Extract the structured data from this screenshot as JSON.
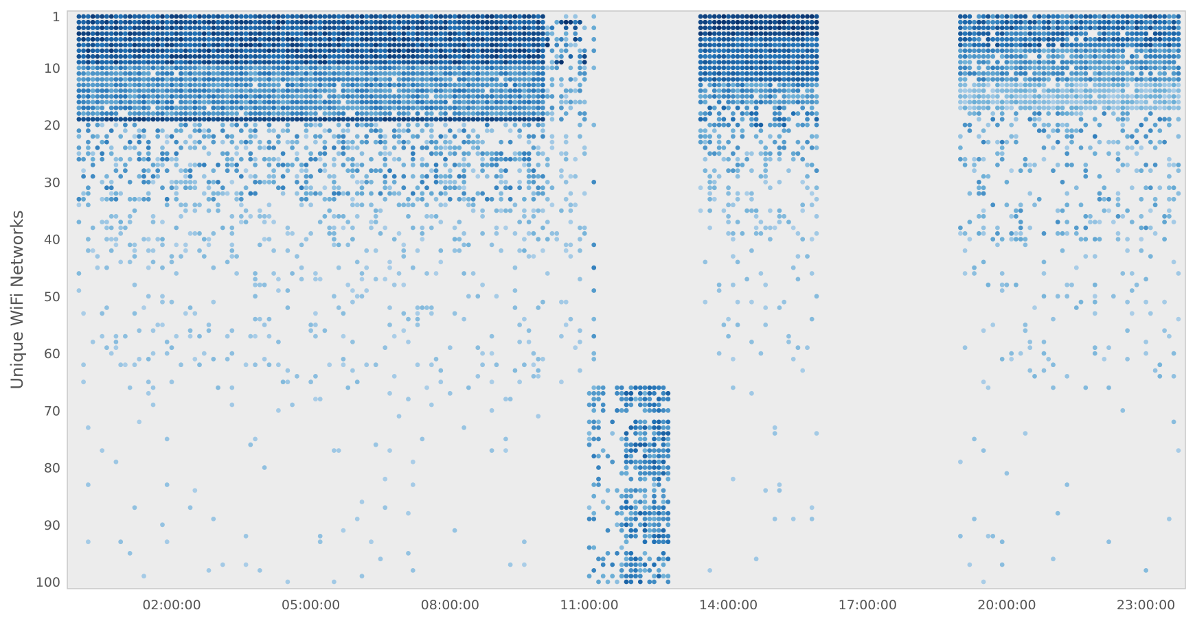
{
  "chart_data": {
    "type": "scatter",
    "ylabel": "Unique WiFi Networks",
    "xlabel": "",
    "x_unit": "hours of day",
    "xlim": [
      -0.25,
      23.85
    ],
    "ylim": [
      1,
      100
    ],
    "y_inverted": true,
    "grid": false,
    "legend": "none",
    "x_ticks": [
      {
        "value": 2,
        "label": "02:00:00"
      },
      {
        "value": 5,
        "label": "05:00:00"
      },
      {
        "value": 8,
        "label": "08:00:00"
      },
      {
        "value": 11,
        "label": "11:00:00"
      },
      {
        "value": 14,
        "label": "14:00:00"
      },
      {
        "value": 17,
        "label": "17:00:00"
      },
      {
        "value": 20,
        "label": "20:00:00"
      },
      {
        "value": 23,
        "label": "23:00:00"
      }
    ],
    "y_ticks": [
      {
        "value": 1,
        "label": "1"
      },
      {
        "value": 10,
        "label": "10"
      },
      {
        "value": 20,
        "label": "20"
      },
      {
        "value": 30,
        "label": "30"
      },
      {
        "value": 40,
        "label": "40"
      },
      {
        "value": 50,
        "label": "50"
      },
      {
        "value": 60,
        "label": "60"
      },
      {
        "value": 70,
        "label": "70"
      },
      {
        "value": 80,
        "label": "80"
      },
      {
        "value": 90,
        "label": "90"
      },
      {
        "value": 100,
        "label": "100"
      }
    ],
    "colors": {
      "plot_background": "#ececec",
      "frame": "#c8c8c8",
      "intensity_low": "#c6dbef",
      "intensity_mid": "#6baed6",
      "intensity_high": "#2171b5",
      "intensity_max": "#08306b"
    },
    "time_step_hours": 0.1,
    "series": [
      {
        "period": [
          0.0,
          10.0
        ],
        "blocks": [
          {
            "networks": [
              1,
              9
            ],
            "density": 1.0,
            "intensity": [
              0.65,
              0.95
            ]
          },
          {
            "networks": [
              10,
              17
            ],
            "density": 0.97,
            "intensity": [
              0.35,
              0.65
            ]
          },
          {
            "networks": [
              18,
              18
            ],
            "density": 0.8,
            "intensity": [
              0.35,
              0.6
            ]
          },
          {
            "networks": [
              19,
              19
            ],
            "density": 1.0,
            "intensity": [
              0.8,
              0.95
            ]
          },
          {
            "networks": [
              20,
              33
            ],
            "density": 0.42,
            "intensity": [
              0.1,
              0.6
            ]
          },
          {
            "networks": [
              34,
              42
            ],
            "density": 0.22,
            "intensity": [
              0.1,
              0.3
            ]
          },
          {
            "networks": [
              43,
              66
            ],
            "density": 0.09,
            "intensity": [
              0.1,
              0.25
            ]
          },
          {
            "networks": [
              67,
              100
            ],
            "density": 0.015,
            "intensity": [
              0.1,
              0.2
            ]
          }
        ]
      },
      {
        "period": [
          10.1,
          10.9
        ],
        "blocks": [
          {
            "networks": [
              1,
              9
            ],
            "density": 0.6,
            "intensity": [
              0.15,
              1.0
            ]
          },
          {
            "networks": [
              10,
              19
            ],
            "density": 0.5,
            "intensity": [
              0.1,
              0.5
            ]
          },
          {
            "networks": [
              20,
              42
            ],
            "density": 0.22,
            "intensity": [
              0.1,
              0.3
            ]
          },
          {
            "networks": [
              43,
              66
            ],
            "density": 0.05,
            "intensity": [
              0.1,
              0.2
            ]
          },
          {
            "networks": [
              67,
              100
            ],
            "density": 0.01,
            "intensity": [
              0.1,
              0.2
            ]
          }
        ]
      },
      {
        "period": [
          11.1,
          11.1
        ],
        "points": [
          1,
          3,
          5,
          7,
          10,
          20,
          30,
          41,
          45,
          49,
          54,
          57,
          60,
          61
        ]
      },
      {
        "period": [
          11.0,
          11.8
        ],
        "blocks": [
          {
            "networks": [
              66,
              70
            ],
            "density": 0.45,
            "intensity": [
              0.2,
              0.6
            ]
          },
          {
            "networks": [
              72,
              100
            ],
            "density": 0.3,
            "intensity": [
              0.2,
              0.6
            ]
          }
        ]
      },
      {
        "period": [
          11.8,
          12.7
        ],
        "blocks": [
          {
            "networks": [
              66,
              70
            ],
            "density": 0.85,
            "intensity": [
              0.3,
              0.75
            ]
          },
          {
            "networks": [
              72,
              82
            ],
            "density": 0.8,
            "intensity": [
              0.3,
              0.75
            ]
          },
          {
            "networks": [
              83,
              85
            ],
            "density": 0.45,
            "intensity": [
              0.2,
              0.55
            ]
          },
          {
            "networks": [
              86,
              93
            ],
            "density": 0.8,
            "intensity": [
              0.3,
              0.75
            ]
          },
          {
            "networks": [
              95,
              100
            ],
            "density": 0.6,
            "intensity": [
              0.3,
              0.75
            ]
          }
        ]
      },
      {
        "period": [
          13.4,
          15.9
        ],
        "blocks": [
          {
            "networks": [
              1,
              4
            ],
            "density": 1.0,
            "intensity": [
              0.8,
              1.0
            ]
          },
          {
            "networks": [
              5,
              12
            ],
            "density": 1.0,
            "intensity": [
              0.6,
              0.8
            ]
          },
          {
            "networks": [
              13,
              16
            ],
            "density": 0.9,
            "intensity": [
              0.3,
              0.65
            ]
          },
          {
            "networks": [
              17,
              20
            ],
            "density": 0.55,
            "intensity": [
              0.35,
              0.75
            ]
          },
          {
            "networks": [
              21,
              28
            ],
            "density": 0.35,
            "intensity": [
              0.15,
              0.5
            ]
          },
          {
            "networks": [
              29,
              40
            ],
            "density": 0.2,
            "intensity": [
              0.1,
              0.3
            ]
          },
          {
            "networks": [
              41,
              60
            ],
            "density": 0.06,
            "intensity": [
              0.1,
              0.25
            ]
          },
          {
            "networks": [
              61,
              100
            ],
            "density": 0.012,
            "intensity": [
              0.1,
              0.2
            ]
          }
        ]
      },
      {
        "period": [
          19.0,
          23.7
        ],
        "blocks": [
          {
            "networks": [
              1,
              6
            ],
            "density": 0.95,
            "intensity": [
              0.45,
              0.85
            ]
          },
          {
            "networks": [
              7,
              12
            ],
            "density": 0.9,
            "intensity": [
              0.3,
              0.6
            ]
          },
          {
            "networks": [
              13,
              17
            ],
            "density": 0.9,
            "intensity": [
              0.1,
              0.35
            ]
          },
          {
            "networks": [
              18,
              23
            ],
            "density": 0.3,
            "intensity": [
              0.15,
              0.6
            ]
          },
          {
            "networks": [
              24,
              40
            ],
            "density": 0.2,
            "intensity": [
              0.1,
              0.5
            ]
          },
          {
            "networks": [
              41,
              66
            ],
            "density": 0.07,
            "intensity": [
              0.1,
              0.3
            ]
          },
          {
            "networks": [
              67,
              100
            ],
            "density": 0.015,
            "intensity": [
              0.1,
              0.25
            ]
          }
        ]
      }
    ]
  }
}
